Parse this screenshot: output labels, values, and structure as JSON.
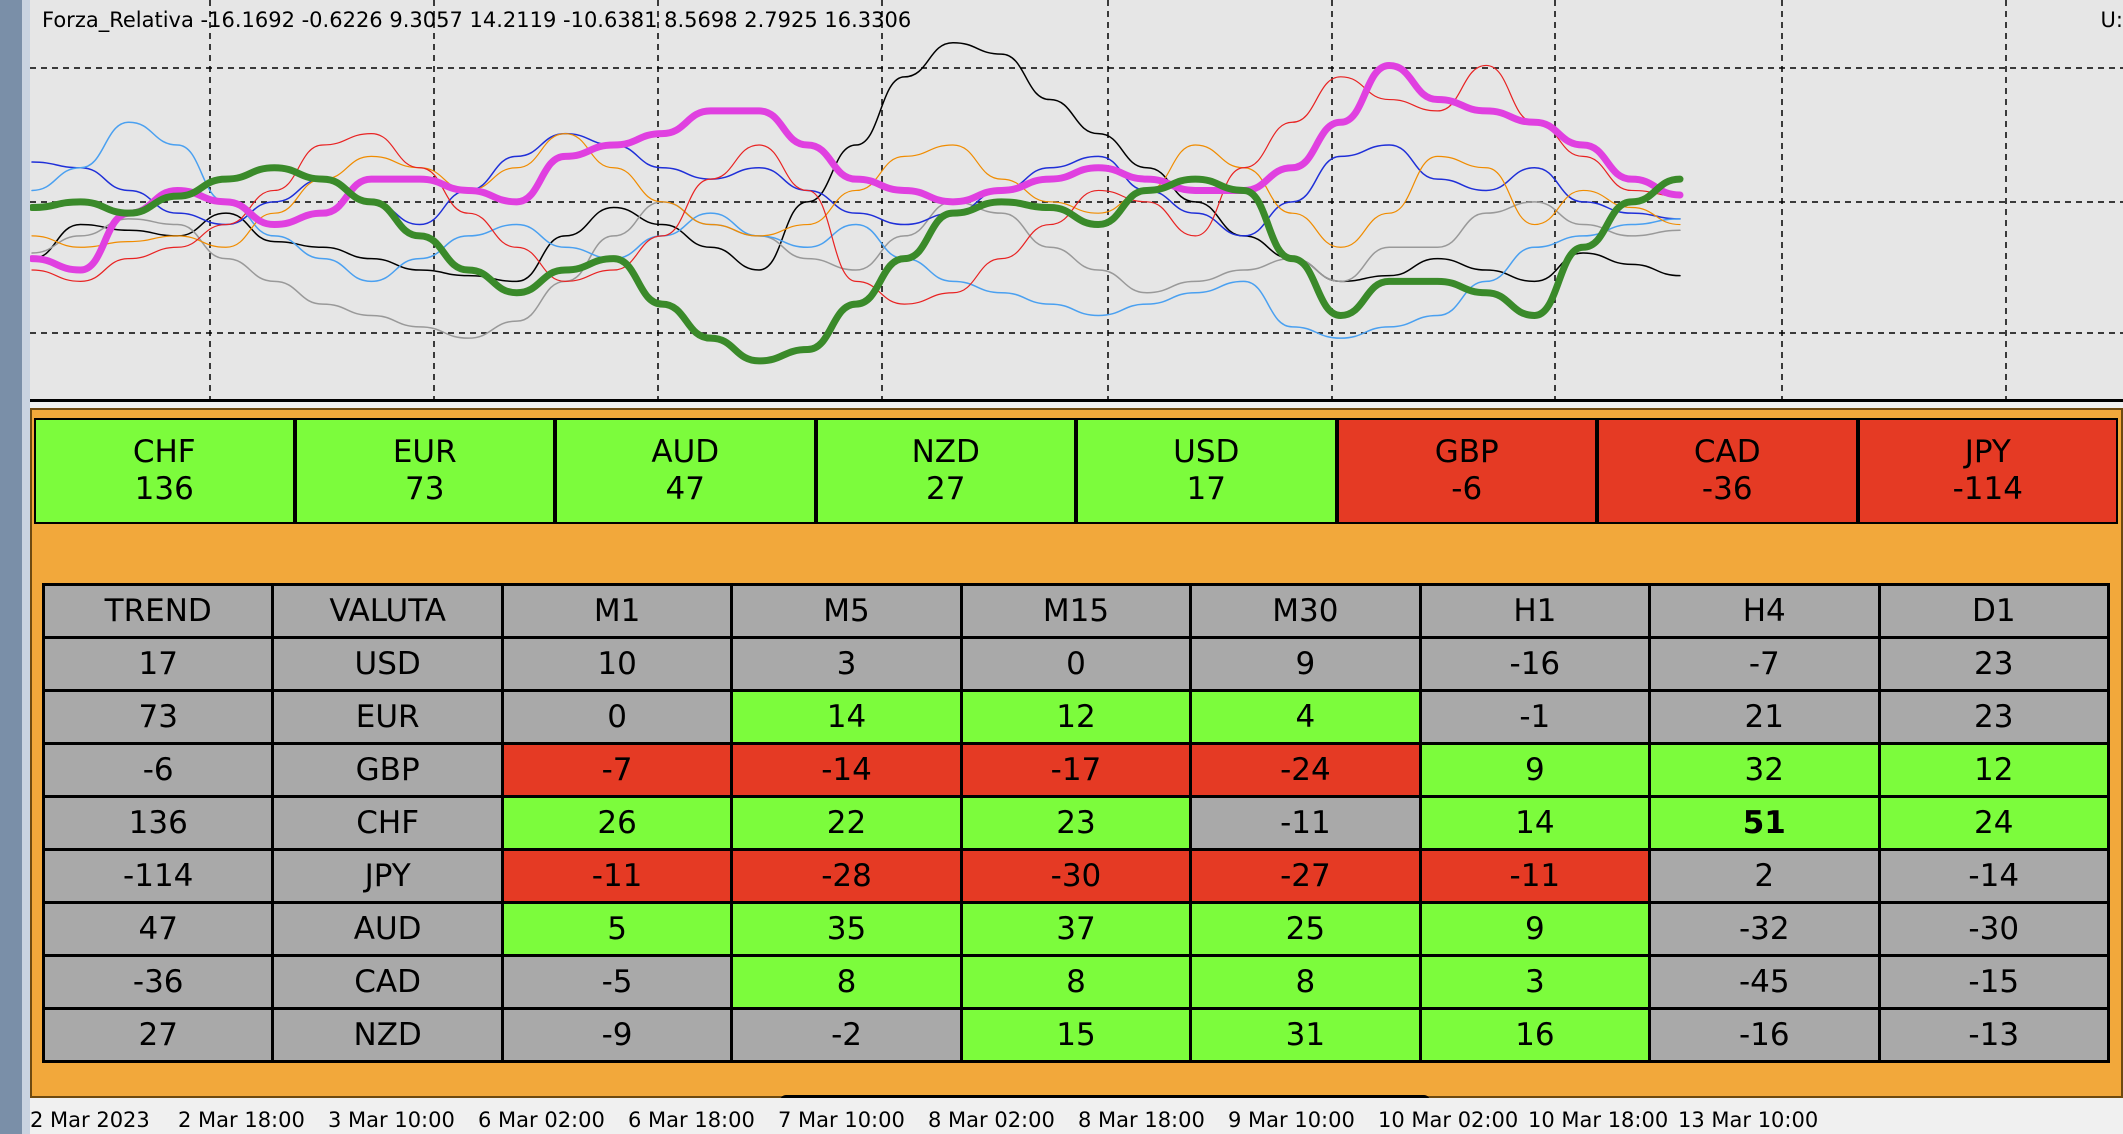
{
  "chart": {
    "title": "Forza_Relativa -16.1692 -0.6226 9.3057 14.2119 -10.6381 8.5698 2.7925 16.3306",
    "right_label": "U:"
  },
  "chart_data": {
    "type": "line",
    "series": [
      {
        "color": "#000000",
        "width": 1.5,
        "values": [
          -40,
          -10,
          -15,
          -20,
          0,
          -25,
          -30,
          -40,
          -50,
          -55,
          -60,
          -20,
          5,
          -10,
          -30,
          -50,
          10,
          60,
          120,
          150,
          140,
          100,
          70,
          40,
          10,
          -20,
          -40,
          -60,
          -55,
          -40,
          -50,
          -60,
          -35,
          -45,
          -55
        ]
      },
      {
        "color": "#999999",
        "width": 1.5,
        "values": [
          -35,
          -20,
          -5,
          -10,
          -40,
          -60,
          -80,
          -90,
          -100,
          -110,
          -95,
          -60,
          -20,
          10,
          -10,
          -20,
          -40,
          -50,
          -20,
          10,
          0,
          -30,
          -50,
          -70,
          -60,
          -50,
          -40,
          -60,
          -30,
          -30,
          0,
          10,
          -10,
          -20,
          -15
        ]
      },
      {
        "color": "#1f2fd8",
        "width": 1.5,
        "values": [
          45,
          40,
          20,
          0,
          -10,
          10,
          30,
          10,
          -10,
          20,
          50,
          70,
          60,
          40,
          30,
          40,
          20,
          0,
          -10,
          0,
          20,
          40,
          50,
          20,
          0,
          -20,
          10,
          50,
          60,
          30,
          20,
          40,
          10,
          0,
          -5
        ]
      },
      {
        "color": "#4aa0f0",
        "width": 1.5,
        "values": [
          20,
          40,
          80,
          60,
          10,
          -20,
          -40,
          -60,
          -40,
          -20,
          -10,
          -30,
          -40,
          -20,
          0,
          -20,
          -30,
          -10,
          -40,
          -60,
          -70,
          -80,
          -90,
          -80,
          -70,
          -60,
          -100,
          -110,
          -100,
          -90,
          -60,
          -30,
          -20,
          -10,
          -5
        ]
      },
      {
        "color": "#f08c00",
        "width": 1.2,
        "values": [
          -20,
          -30,
          -25,
          -20,
          -30,
          0,
          30,
          50,
          40,
          20,
          40,
          70,
          40,
          10,
          -10,
          -20,
          -10,
          20,
          50,
          60,
          30,
          10,
          0,
          20,
          60,
          40,
          0,
          -30,
          0,
          50,
          40,
          -10,
          20,
          5,
          -10
        ]
      },
      {
        "color": "#e82222",
        "width": 1.2,
        "values": [
          -50,
          -60,
          -40,
          -30,
          -10,
          20,
          60,
          70,
          40,
          0,
          -30,
          -60,
          -50,
          -20,
          30,
          60,
          20,
          -60,
          -80,
          -70,
          -40,
          -10,
          20,
          10,
          -20,
          40,
          80,
          120,
          100,
          90,
          130,
          80,
          50,
          20,
          15
        ]
      },
      {
        "color": "#e040e0",
        "width": 7,
        "values": [
          -40,
          -50,
          0,
          20,
          10,
          -10,
          0,
          30,
          30,
          20,
          10,
          50,
          60,
          70,
          90,
          90,
          60,
          30,
          20,
          10,
          20,
          30,
          40,
          30,
          20,
          20,
          40,
          80,
          130,
          100,
          90,
          80,
          60,
          30,
          16
        ]
      },
      {
        "color": "#3a8a2a",
        "width": 7,
        "values": [
          5,
          10,
          0,
          15,
          30,
          40,
          30,
          10,
          -20,
          -50,
          -70,
          -50,
          -40,
          -80,
          -110,
          -130,
          -120,
          -80,
          -40,
          0,
          10,
          5,
          -10,
          20,
          30,
          20,
          -40,
          -90,
          -60,
          -60,
          -70,
          -90,
          -30,
          10,
          30
        ]
      }
    ],
    "ylim": [
      -160,
      170
    ],
    "x_ticks": [
      "2 Mar 2023",
      "2 Mar 18:00",
      "3 Mar 10:00",
      "6 Mar 02:00",
      "6 Mar 18:00",
      "7 Mar 10:00",
      "8 Mar 02:00",
      "8 Mar 18:00",
      "9 Mar 10:00",
      "10 Mar 02:00",
      "10 Mar 18:00",
      "13 Mar 10:00"
    ],
    "grid": true
  },
  "strength": [
    {
      "cur": "CHF",
      "val": "136",
      "state": "pos"
    },
    {
      "cur": "EUR",
      "val": "73",
      "state": "pos"
    },
    {
      "cur": "AUD",
      "val": "47",
      "state": "pos"
    },
    {
      "cur": "NZD",
      "val": "27",
      "state": "pos"
    },
    {
      "cur": "USD",
      "val": "17",
      "state": "pos"
    },
    {
      "cur": "GBP",
      "val": "-6",
      "state": "neg"
    },
    {
      "cur": "CAD",
      "val": "-36",
      "state": "neg"
    },
    {
      "cur": "JPY",
      "val": "-114",
      "state": "neg"
    }
  ],
  "table": {
    "headers": [
      "TREND",
      "VALUTA",
      "M1",
      "M5",
      "M15",
      "M30",
      "H1",
      "H4",
      "D1"
    ],
    "rows": [
      {
        "cells": [
          "17",
          "USD",
          "10",
          "3",
          "0",
          "9",
          "-16",
          "-7",
          "23"
        ],
        "colors": [
          "",
          "",
          "",
          "",
          "",
          "",
          "",
          "",
          ""
        ]
      },
      {
        "cells": [
          "73",
          "EUR",
          "0",
          "14",
          "12",
          "4",
          "-1",
          "21",
          "23"
        ],
        "colors": [
          "",
          "",
          "",
          "g",
          "g",
          "g",
          "",
          "",
          ""
        ]
      },
      {
        "cells": [
          "-6",
          "GBP",
          "-7",
          "-14",
          "-17",
          "-24",
          "9",
          "32",
          "12"
        ],
        "colors": [
          "",
          "",
          "r",
          "r",
          "r",
          "r",
          "g",
          "g",
          "g"
        ]
      },
      {
        "cells": [
          "136",
          "CHF",
          "26",
          "22",
          "23",
          "-11",
          "14",
          "51",
          "24"
        ],
        "colors": [
          "",
          "",
          "g",
          "g",
          "g",
          "",
          "g",
          "g b",
          "g"
        ]
      },
      {
        "cells": [
          "-114",
          "JPY",
          "-11",
          "-28",
          "-30",
          "-27",
          "-11",
          "2",
          "-14"
        ],
        "colors": [
          "",
          "",
          "r",
          "r",
          "r",
          "r",
          "r",
          "",
          ""
        ]
      },
      {
        "cells": [
          "47",
          "AUD",
          "5",
          "35",
          "37",
          "25",
          "9",
          "-32",
          "-30"
        ],
        "colors": [
          "",
          "",
          "g",
          "g",
          "g",
          "g",
          "g",
          "",
          ""
        ]
      },
      {
        "cells": [
          "-36",
          "CAD",
          "-5",
          "8",
          "8",
          "8",
          "3",
          "-45",
          "-15"
        ],
        "colors": [
          "",
          "",
          "",
          "g",
          "g",
          "g",
          "g",
          "",
          ""
        ]
      },
      {
        "cells": [
          "27",
          "NZD",
          "-9",
          "-2",
          "15",
          "31",
          "16",
          "-16",
          "-13"
        ],
        "colors": [
          "",
          "",
          "",
          "",
          "g",
          "g",
          "g",
          "",
          ""
        ]
      }
    ]
  }
}
